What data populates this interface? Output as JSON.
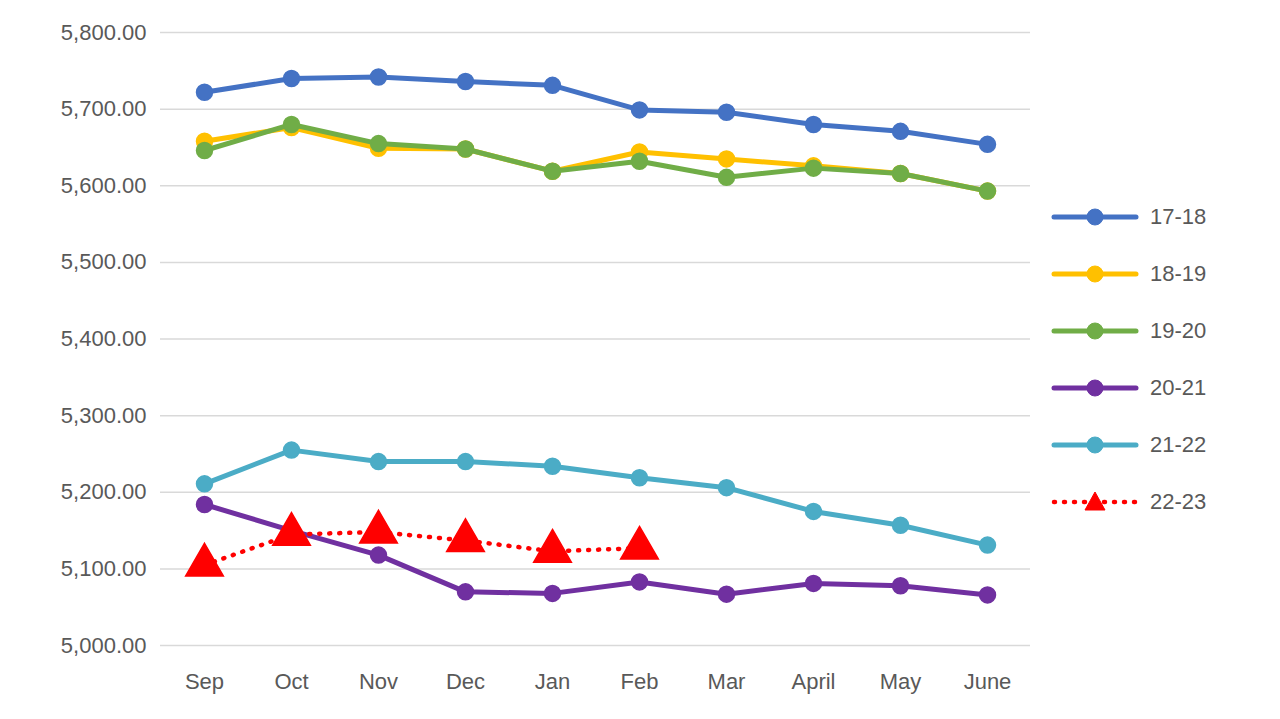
{
  "chart_data": {
    "type": "line",
    "categories": [
      "Sep",
      "Oct",
      "Nov",
      "Dec",
      "Jan",
      "Feb",
      "Mar",
      "April",
      "May",
      "June"
    ],
    "series": [
      {
        "name": "17-18",
        "color": "#4472c4",
        "marker": "circle",
        "line_style": "solid",
        "values": [
          5722,
          5740,
          5742,
          5736,
          5731,
          5699,
          5696,
          5680,
          5671,
          5654
        ]
      },
      {
        "name": "18-19",
        "color": "#ffc000",
        "marker": "circle",
        "line_style": "solid",
        "values": [
          5658,
          5676,
          5649,
          5648,
          5619,
          5644,
          5635,
          5626,
          5616,
          5593
        ]
      },
      {
        "name": "19-20",
        "color": "#70ad47",
        "marker": "circle",
        "line_style": "solid",
        "values": [
          5646,
          5680,
          5655,
          5648,
          5619,
          5632,
          5611,
          5623,
          5616,
          5593
        ]
      },
      {
        "name": "20-21",
        "color": "#7030a0",
        "marker": "circle",
        "line_style": "solid",
        "values": [
          5184,
          5150,
          5118,
          5070,
          5068,
          5083,
          5067,
          5081,
          5078,
          5066
        ]
      },
      {
        "name": "21-22",
        "color": "#4bacc6",
        "marker": "circle",
        "line_style": "solid",
        "values": [
          5211,
          5255,
          5240,
          5240,
          5234,
          5219,
          5206,
          5175,
          5157,
          5131
        ]
      },
      {
        "name": "22-23",
        "color": "#ff0000",
        "marker": "triangle",
        "line_style": "dotted",
        "values": [
          5105,
          5145,
          5148,
          5137,
          5123,
          5127,
          null,
          null,
          null,
          null
        ]
      }
    ],
    "ylim": [
      5000,
      5800
    ],
    "yticks": [
      {
        "value": 5000,
        "label": "5,000.00"
      },
      {
        "value": 5100,
        "label": "5,100.00"
      },
      {
        "value": 5200,
        "label": "5,200.00"
      },
      {
        "value": 5300,
        "label": "5,300.00"
      },
      {
        "value": 5400,
        "label": "5,400.00"
      },
      {
        "value": 5500,
        "label": "5,500.00"
      },
      {
        "value": 5600,
        "label": "5,600.00"
      },
      {
        "value": 5700,
        "label": "5,700.00"
      },
      {
        "value": 5800,
        "label": "5,800.00"
      }
    ],
    "grid": true,
    "legend": "right"
  }
}
